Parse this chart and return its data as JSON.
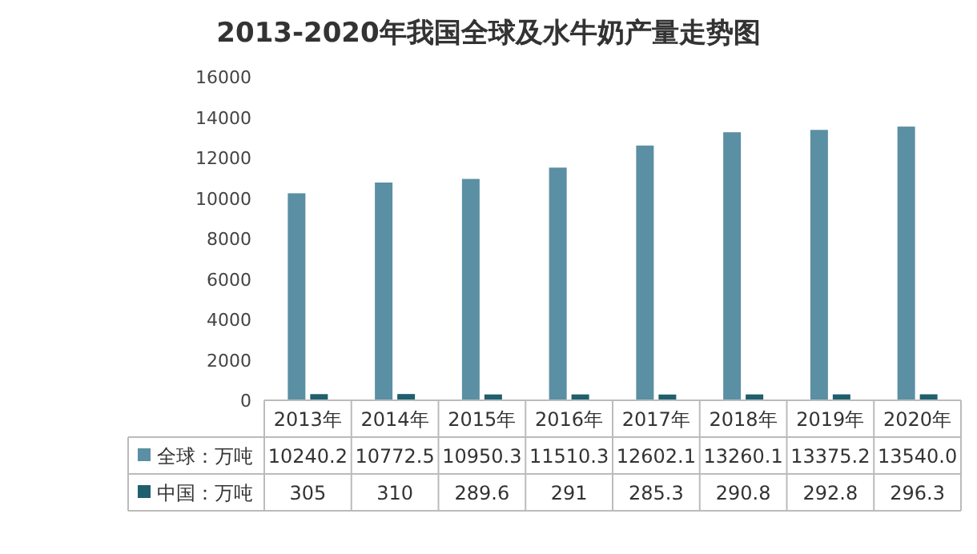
{
  "chart_data": {
    "type": "bar",
    "title": "2013-2020年我国全球及水牛奶产量走势图",
    "categories": [
      "2013年",
      "2014年",
      "2015年",
      "2016年",
      "2017年",
      "2018年",
      "2019年",
      "2020年"
    ],
    "series": [
      {
        "name": "全球：万吨",
        "color": "#5b8fa3",
        "values": [
          10240.2,
          10772.5,
          10950.3,
          11510.3,
          12602.1,
          13260.1,
          13375.2,
          13540.0
        ],
        "value_labels": [
          "10240.2",
          "10772.5",
          "10950.3",
          "11510.3",
          "12602.1",
          "13260.1",
          "13375.2",
          "13540.0"
        ]
      },
      {
        "name": "中国：万吨",
        "color": "#1f5f6e",
        "values": [
          305,
          310,
          289.6,
          291,
          285.3,
          290.8,
          292.8,
          296.3
        ],
        "value_labels": [
          "305",
          "310",
          "289.6",
          "291",
          "285.3",
          "290.8",
          "292.8",
          "296.3"
        ]
      }
    ],
    "ylim": [
      0,
      16000
    ],
    "yticks": [
      0,
      2000,
      4000,
      6000,
      8000,
      10000,
      12000,
      14000,
      16000
    ],
    "legend": "bottom"
  }
}
